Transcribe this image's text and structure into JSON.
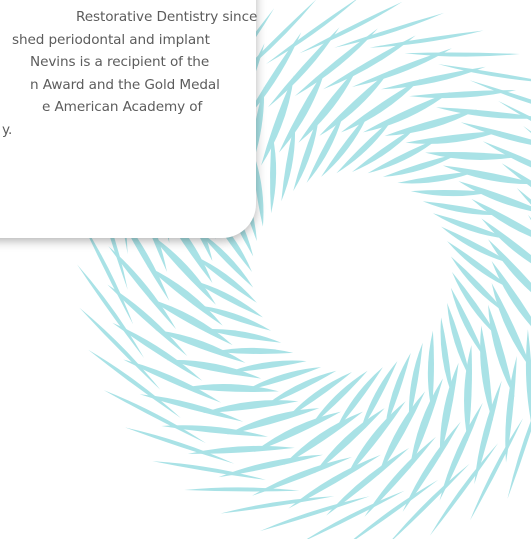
{
  "bio": {
    "lines": [
      "Restorative Dentistry since",
      "shed periodontal and implant",
      "Nevins is a recipient of the",
      "n Award and the Gold Medal",
      "e American Academy of",
      "y."
    ]
  },
  "decoration": {
    "name": "petal-burst",
    "color": "#a9e2e6"
  }
}
